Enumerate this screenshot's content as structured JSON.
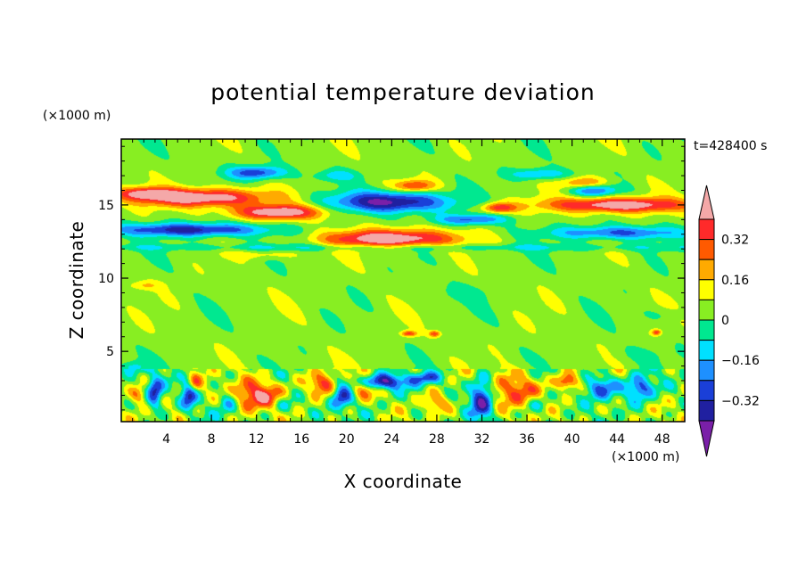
{
  "chart_data": {
    "type": "heatmap",
    "title": "potential temperature deviation",
    "time_label": "t=428400 s",
    "xlabel": "X coordinate",
    "ylabel": "Z coordinate",
    "x_unit": "(×1000 m)",
    "y_unit": "(×1000 m)",
    "xlim": [
      0,
      50
    ],
    "ylim": [
      0.2,
      19.5
    ],
    "x_ticks": [
      4,
      8,
      12,
      16,
      20,
      24,
      28,
      32,
      36,
      40,
      44,
      48
    ],
    "y_ticks": [
      5,
      10,
      15
    ],
    "x_tick_labels": [
      "4",
      "8",
      "12",
      "16",
      "20",
      "24",
      "28",
      "32",
      "36",
      "40",
      "44",
      "48"
    ],
    "y_tick_labels": [
      "5",
      "10",
      "15"
    ],
    "colorbar": {
      "levels": [
        -0.4,
        -0.32,
        -0.24,
        -0.16,
        -0.08,
        0,
        0.08,
        0.16,
        0.24,
        0.32,
        0.4
      ],
      "colors": [
        "#7a1fa8",
        "#2020a0",
        "#1a3fd8",
        "#1e90ff",
        "#00e0ff",
        "#00e890",
        "#88ee22",
        "#ffff00",
        "#ffaa00",
        "#ff5a00",
        "#ff2a2a",
        "#f4a8a8"
      ],
      "tick_values": [
        0.32,
        0.16,
        0,
        -0.16,
        -0.32
      ],
      "tick_labels": [
        "0.32",
        "0.16",
        "0",
        "−0.16",
        "−0.32"
      ]
    },
    "field_description": {
      "background_level": 0.04,
      "upper_layer_z": [
        12,
        18
      ],
      "upper_layer_peak_positive": 0.44,
      "upper_layer_peak_negative": -0.44,
      "lower_layer_z": [
        0.2,
        3.6
      ]
    }
  }
}
